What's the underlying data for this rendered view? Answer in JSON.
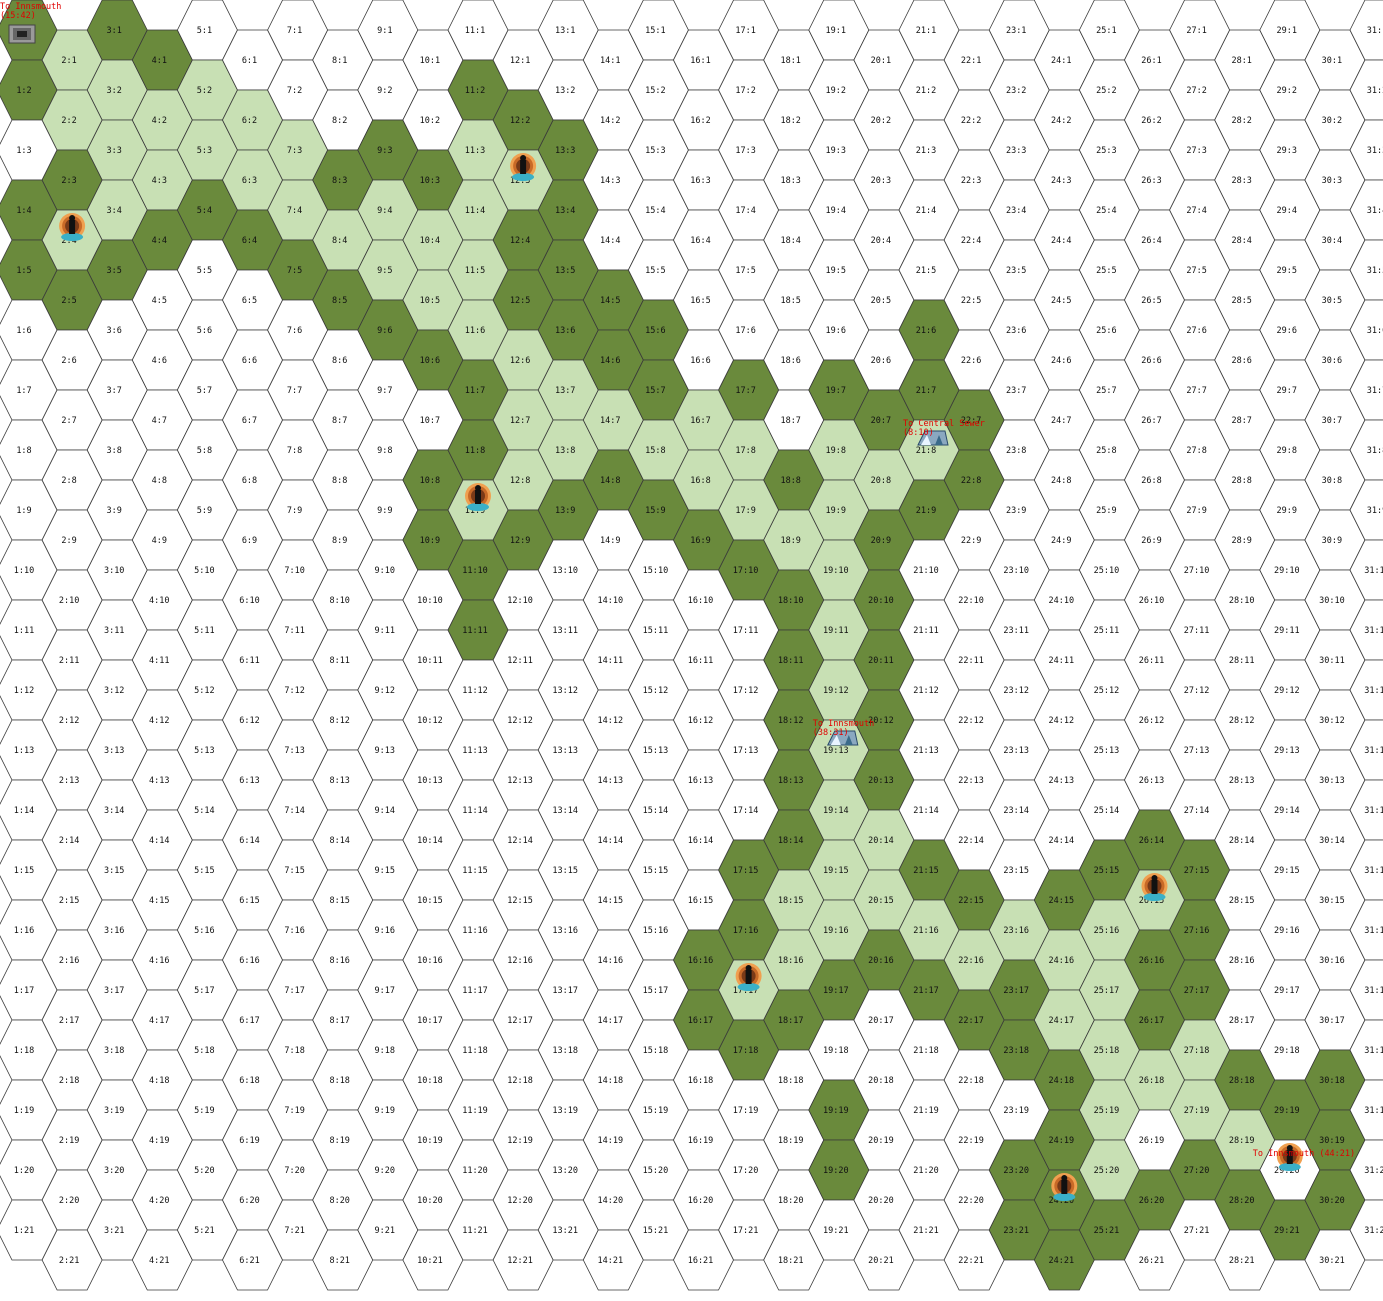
{
  "colors": {
    "background": "#ffffff",
    "grid_line": "#3a3a3a",
    "edge": "#6a8a3c",
    "path": "#c8e0b4",
    "exit_label": "#e00000"
  },
  "map": {
    "cols": 31,
    "rows": 21
  },
  "edge_hexes": [
    "1:1",
    "3:1",
    "2:1",
    "4:1",
    "1:2",
    "2:2",
    "3:2",
    "5:2",
    "6:2",
    "7:3",
    "8:3",
    "9:3",
    "3:3",
    "2:3",
    "1:4",
    "3:4",
    "2:4",
    "4:4",
    "1:5",
    "2:5",
    "3:5",
    "4:2",
    "5:4",
    "6:4",
    "7:5",
    "8:5",
    "9:6",
    "10:6",
    "11:7",
    "10:8",
    "11:8",
    "10:9",
    "11:9",
    "12:9",
    "11:10",
    "13:9",
    "14:8",
    "13:8",
    "15:9",
    "16:9",
    "17:10",
    "18:10",
    "18:11",
    "18:12",
    "18:13",
    "18:14",
    "17:15",
    "17:16",
    "16:16",
    "16:17",
    "17:18",
    "18:17",
    "19:17",
    "20:16",
    "21:15",
    "21:17",
    "22:17",
    "23:16",
    "23:17",
    "23:18",
    "24:15",
    "25:15",
    "26:14",
    "26:15",
    "27:15",
    "27:16",
    "26:16",
    "26:17",
    "27:17",
    "28:18",
    "29:19",
    "30:19",
    "30:20",
    "29:21",
    "30:18",
    "28:20",
    "27:20",
    "26:20",
    "25:21",
    "24:21",
    "23:21",
    "23:20",
    "24:20",
    "24:19",
    "24:18",
    "20:9",
    "20:10",
    "20:11",
    "20:12",
    "20:13",
    "20:14",
    "19:16",
    "20:7",
    "19:8",
    "18:8",
    "17:7",
    "16:7",
    "15:7",
    "15:6",
    "14:6",
    "13:6",
    "14:5",
    "13:5",
    "12:5",
    "12:4",
    "13:4",
    "13:3",
    "12:2",
    "11:2",
    "11:3",
    "10:3",
    "10:4",
    "9:5",
    "8:4",
    "7:4",
    "6:3",
    "5:3",
    "4:3",
    "21:7",
    "21:6",
    "22:7",
    "22:8",
    "21:9",
    "11:11",
    "8:5",
    "9:6",
    "12:7",
    "12:5",
    "11:5",
    "14:8",
    "15:8",
    "16:8",
    "17:9",
    "15:7",
    "16:7",
    "17:8",
    "18:9",
    "19:7",
    "20:8",
    "19:19",
    "19:20",
    "18:16",
    "18:15",
    "22:15"
  ],
  "path_hexes": [
    "2:1",
    "3:2",
    "4:2",
    "4:3",
    "5:2",
    "5:3",
    "6:3",
    "6:2",
    "7:4",
    "7:3",
    "8:4",
    "9:4",
    "9:5",
    "10:4",
    "10:5",
    "11:4",
    "11:5",
    "11:6",
    "12:3",
    "11:3",
    "12:6",
    "12:7",
    "13:7",
    "13:8",
    "14:7",
    "12:8",
    "11:9",
    "14:7",
    "15:8",
    "16:8",
    "16:7",
    "17:9",
    "17:8",
    "18:9",
    "19:9",
    "19:10",
    "19:11",
    "19:12",
    "19:13",
    "19:14",
    "19:15",
    "20:15",
    "20:14",
    "19:16",
    "18:16",
    "17:17",
    "18:15",
    "21:16",
    "22:16",
    "23:16",
    "24:16",
    "24:17",
    "25:17",
    "25:18",
    "26:18",
    "27:18",
    "27:19",
    "28:19",
    "25:16",
    "26:15",
    "25:19",
    "25:20",
    "24:17",
    "21:8",
    "20:8",
    "19:8",
    "18:9",
    "2:4",
    "3:3",
    "3:4",
    "2:2",
    "4:2"
  ],
  "labels_hidden": [
    "1:3",
    "1:6",
    "1:7",
    "1:8",
    "1:9",
    "1:10",
    "1:11",
    "1:12",
    "1:13",
    "1:14",
    "1:15",
    "1:16",
    "1:17",
    "1:18",
    "1:19",
    "1:20",
    "1:21"
  ],
  "markers": [
    {
      "type": "portal-icon",
      "hex": "2:4"
    },
    {
      "type": "portal-icon",
      "hex": "12:3"
    },
    {
      "type": "portal-icon",
      "hex": "11:9"
    },
    {
      "type": "portal-icon",
      "hex": "17:17"
    },
    {
      "type": "portal-icon",
      "hex": "26:15"
    },
    {
      "type": "portal-icon",
      "hex": "24:20"
    },
    {
      "type": "portal-icon",
      "hex": "29:20"
    },
    {
      "type": "stairs-icon",
      "hex": "1:1"
    },
    {
      "type": "tent-icon",
      "hex": "21:8"
    },
    {
      "type": "tent-icon",
      "hex": "19:13"
    }
  ],
  "exits": [
    {
      "hex": "1:1",
      "line1": "To Innsmouth",
      "line2": "(15:42)"
    },
    {
      "hex": "21:8",
      "line1": "To Central Sewer",
      "line2": "(8:10)"
    },
    {
      "hex": "19:13",
      "line1": "To Innsmouth",
      "line2": "(38:31)"
    },
    {
      "hex": "29:20",
      "line1": "To Innsmouth (44:21)",
      "line2": ""
    }
  ]
}
